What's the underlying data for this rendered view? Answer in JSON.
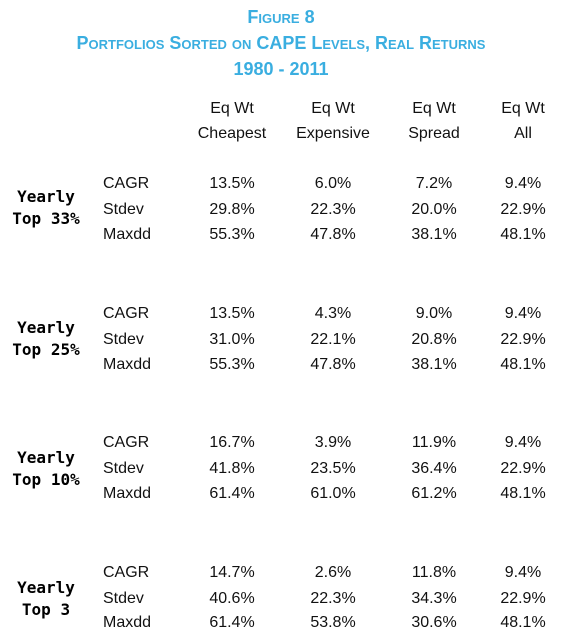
{
  "title": {
    "line1": "Figure 8",
    "line2": "Portfolios Sorted on CAPE Levels, Real Returns",
    "line3": "1980 - 2011"
  },
  "columns": [
    {
      "line1": "Eq Wt",
      "line2": "Cheapest"
    },
    {
      "line1": "Eq Wt",
      "line2": "Expensive"
    },
    {
      "line1": "Eq Wt",
      "line2": "Spread"
    },
    {
      "line1": "Eq Wt",
      "line2": "All"
    }
  ],
  "groups": [
    {
      "label_line1": "Yearly",
      "label_line2": "Top 33%",
      "rows": [
        {
          "metric": "CAGR",
          "values": [
            "13.5%",
            "6.0%",
            "7.2%",
            "9.4%"
          ]
        },
        {
          "metric": "Stdev",
          "values": [
            "29.8%",
            "22.3%",
            "20.0%",
            "22.9%"
          ]
        },
        {
          "metric": "Maxdd",
          "values": [
            "55.3%",
            "47.8%",
            "38.1%",
            "48.1%"
          ]
        }
      ]
    },
    {
      "label_line1": "Yearly",
      "label_line2": "Top 25%",
      "rows": [
        {
          "metric": "CAGR",
          "values": [
            "13.5%",
            "4.3%",
            "9.0%",
            "9.4%"
          ]
        },
        {
          "metric": "Stdev",
          "values": [
            "31.0%",
            "22.1%",
            "20.8%",
            "22.9%"
          ]
        },
        {
          "metric": "Maxdd",
          "values": [
            "55.3%",
            "47.8%",
            "38.1%",
            "48.1%"
          ]
        }
      ]
    },
    {
      "label_line1": "Yearly",
      "label_line2": "Top 10%",
      "rows": [
        {
          "metric": "CAGR",
          "values": [
            "16.7%",
            "3.9%",
            "11.9%",
            "9.4%"
          ]
        },
        {
          "metric": "Stdev",
          "values": [
            "41.8%",
            "23.5%",
            "36.4%",
            "22.9%"
          ]
        },
        {
          "metric": "Maxdd",
          "values": [
            "61.4%",
            "61.0%",
            "61.2%",
            "48.1%"
          ]
        }
      ]
    },
    {
      "label_line1": "Yearly",
      "label_line2": "Top 3",
      "rows": [
        {
          "metric": "CAGR",
          "values": [
            "14.7%",
            "2.6%",
            "11.8%",
            "9.4%"
          ]
        },
        {
          "metric": "Stdev",
          "values": [
            "40.6%",
            "22.3%",
            "34.3%",
            "22.9%"
          ]
        },
        {
          "metric": "Maxdd",
          "values": [
            "61.4%",
            "53.8%",
            "30.6%",
            "48.1%"
          ]
        }
      ]
    }
  ],
  "colors": {
    "title": "#3aaee0",
    "text": "#111111"
  }
}
